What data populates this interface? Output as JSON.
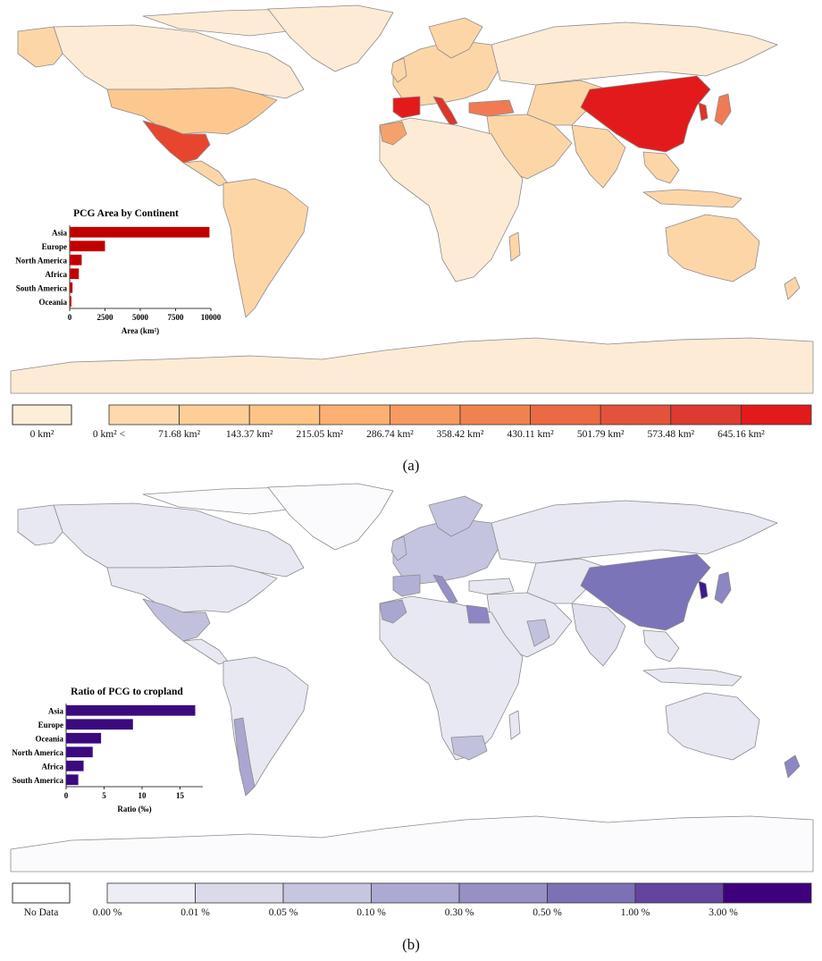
{
  "panel_a": {
    "caption": "(a)",
    "map_colors": {
      "ocean": "#ffffff",
      "border": "#8c8c8c",
      "antarctica": "#fdebd6",
      "greenland": "#fdebd6",
      "default_land": "#fdd6a8",
      "russia": "#fdebd6",
      "africa_light": "#fdebd6",
      "china": "#e31a1c",
      "mexico": "#e8452f",
      "spain": "#e31a1c",
      "italy": "#e0332a",
      "turkey": "#f07a53",
      "morocco": "#f4a26c",
      "japan": "#f07a53",
      "korea": "#e0332a",
      "usa": "#fdc890"
    },
    "legend": {
      "zero_label": "0 km²",
      "zero_color": "#fdeed9",
      "bin_labels": [
        "0 km² <",
        "71.68 km²",
        "143.37 km²",
        "215.05 km²",
        "286.74 km²",
        "358.42 km²",
        "430.11 km²",
        "501.79 km²",
        "573.48 km²",
        "645.16 km²"
      ],
      "bin_colors": [
        "#fdd9ab",
        "#fdcf97",
        "#fdc486",
        "#fdb072",
        "#f79a61",
        "#f0824f",
        "#ea6a43",
        "#e3523a",
        "#dd3a31",
        "#e31a1c"
      ]
    }
  },
  "panel_b": {
    "caption": "(b)",
    "map_colors": {
      "ocean": "#ffffff",
      "border": "#8c8c8c",
      "antarctica": "#fbfbfd",
      "greenland": "#fbfbfd",
      "default_land": "#e8e8f3",
      "europe": "#c4c4e0",
      "china": "#7b74b8",
      "korea": "#3f1a8a",
      "japan": "#8c86c2",
      "mexico": "#c1c1de",
      "chile": "#a9a6d0",
      "egypt": "#8c86c2",
      "india": "#e0e0ef",
      "oman": "#c1c1de",
      "south_africa": "#c1c1de",
      "new_zealand": "#8c86c2",
      "italy": "#9590c7",
      "spain": "#b3b0d6",
      "morocco": "#a9a6d0"
    },
    "legend": {
      "zero_label": "No Data",
      "zero_color": "#ffffff",
      "bin_labels": [
        "0.00 %",
        "0.01 %",
        "0.05 %",
        "0.10 %",
        "0.30 %",
        "0.50 %",
        "1.00 %",
        "3.00 %"
      ],
      "bin_colors": [
        "#ededf5",
        "#dadaeb",
        "#c6c6e1",
        "#acaad3",
        "#9690c5",
        "#7d71b6",
        "#65449f",
        "#3f007d"
      ]
    }
  },
  "chart_data": [
    {
      "type": "bar",
      "orientation": "horizontal",
      "title": "PCG Area by Continent",
      "categories": [
        "Asia",
        "Europe",
        "North America",
        "Africa",
        "South America",
        "Oceania"
      ],
      "values": [
        9900,
        2500,
        850,
        650,
        200,
        120
      ],
      "xlabel": "Area (km²)",
      "xlim": [
        0,
        10000
      ],
      "ticks": [
        "0",
        "2500",
        "5000",
        "7500",
        "10000"
      ],
      "tick_values": [
        0,
        2500,
        5000,
        7500,
        10000
      ],
      "color": "#c00000"
    },
    {
      "type": "bar",
      "orientation": "horizontal",
      "title": "Ratio of PCG to cropland",
      "categories": [
        "Asia",
        "Europe",
        "Oceania",
        "North America",
        "Africa",
        "South America"
      ],
      "values": [
        17.0,
        8.8,
        4.6,
        3.5,
        2.3,
        1.6
      ],
      "xlabel": "Ratio (‰)",
      "xlim": [
        0,
        18
      ],
      "ticks": [
        "0",
        "5",
        "10",
        "15"
      ],
      "tick_values": [
        0,
        5,
        10,
        15
      ],
      "color": "#3a0a7e"
    }
  ]
}
